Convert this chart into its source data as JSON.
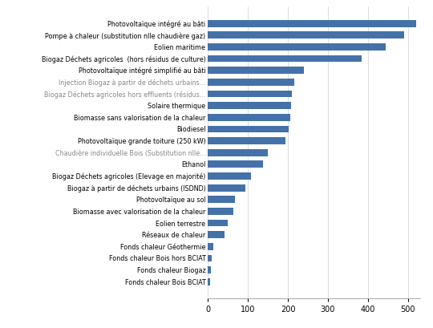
{
  "categories": [
    "Photovoltaïque intégré au bâti",
    "Pompe à chaleur (substitution nlle chaudière gaz)",
    "Eolien maritime",
    "Biogaz Déchets agricoles  (hors résidus de culture)",
    "Photovoltaïque intégré simplifié au bâti",
    "Injection Biogaz à partir de déchets urbains...",
    "Biogaz Déchets agricoles hors effluents (résidus...",
    "Solaire thermique",
    "Biomasse sans valorisation de la chaleur",
    "Biodiesel",
    "Photovoltaïque grande toiture (250 kW)",
    "Chaudière individuelle Bois (Substitution nlle...",
    "Ethanol",
    "Biogaz Déchets agricoles (Elevage en majorité)",
    "Biogaz à partir de déchets urbains (ISDND)",
    "Photovoltaïque au sol",
    "Biomasse avec valorisation de la chaleur",
    "Eolien terrestre",
    "Réseaux de chaleur",
    "Fonds chaleur Géothermie",
    "Fonds chaleur Bois hors BCIAT",
    "Fonds chaleur Biogaz",
    "Fonds chaleur Bois BCIAT"
  ],
  "values": [
    520,
    490,
    445,
    385,
    240,
    215,
    210,
    208,
    205,
    202,
    193,
    150,
    138,
    107,
    93,
    68,
    64,
    50,
    42,
    13,
    10,
    7,
    6
  ],
  "bar_color": "#4472A8",
  "label_colors": [
    "black",
    "black",
    "black",
    "black",
    "black",
    "#888888",
    "#888888",
    "black",
    "black",
    "black",
    "black",
    "#888888",
    "black",
    "black",
    "black",
    "black",
    "black",
    "black",
    "black",
    "black",
    "black",
    "black",
    "black"
  ],
  "xlim": [
    0,
    530
  ],
  "xticks": [
    0,
    100,
    200,
    300,
    400,
    500
  ],
  "figure_bg": "#ffffff",
  "bar_height": 0.6,
  "label_fontsize": 5.8,
  "xtick_fontsize": 7.0
}
